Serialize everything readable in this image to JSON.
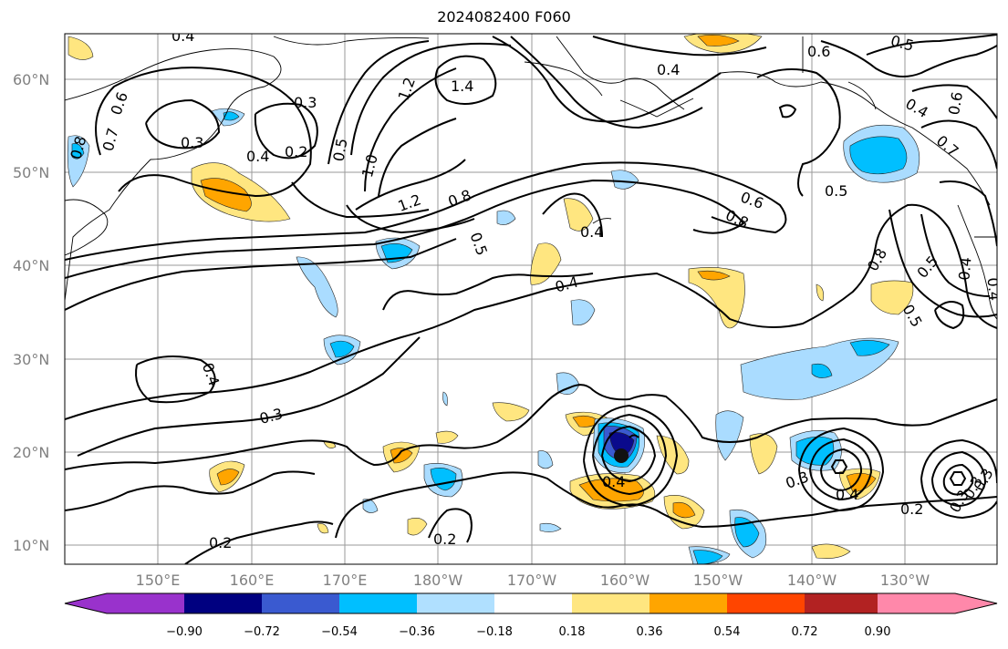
{
  "title": "2024082400 F060",
  "map": {
    "lat_labels": [
      "60°N",
      "50°N",
      "40°N",
      "30°N",
      "20°N",
      "10°N"
    ],
    "lon_labels": [
      "150°E",
      "160°E",
      "170°E",
      "180°W",
      "170°W",
      "160°W",
      "150°W",
      "140°W",
      "130°W"
    ],
    "contour_labels": [
      "0.4",
      "0.6",
      "0.7",
      "0.8",
      "0.3",
      "0.4",
      "0.2",
      "0.3",
      "1.2",
      "1.4",
      "0.5",
      "1.0",
      "1.2",
      "0.8",
      "0.4",
      "0.6",
      "0.8",
      "0.5",
      "0.4",
      "0.5",
      "0.6",
      "0.4",
      "0.5",
      "0.4",
      "0.6",
      "0.7",
      "0.8",
      "0.5",
      "0.4",
      "0.5",
      "0.4",
      "0.4",
      "0.3",
      "0.4",
      "0.3",
      "0.4",
      "0.2",
      "0.3",
      "0.2",
      "0.2",
      "0.3",
      "0.3"
    ],
    "fill_colors": {
      "neg_strong": "#0a0a8c",
      "neg_med": "#3a5ad0",
      "neg": "#00bfff",
      "neg_light": "#aadcff",
      "pos_light": "#ffe680",
      "pos": "#ffa500",
      "pos_med": "#ff4500",
      "pos_strong": "#b22222"
    }
  },
  "colorbar": {
    "tick_labels": [
      "−0.90",
      "−0.72",
      "−0.54",
      "−0.36",
      "−0.18",
      "0.18",
      "0.36",
      "0.54",
      "0.72",
      "0.90"
    ],
    "colors": [
      "#9932cc",
      "#000080",
      "#3a5ad0",
      "#00bfff",
      "#b0e0ff",
      "#ffffff",
      "#ffe680",
      "#ffa500",
      "#ff4500",
      "#b22222",
      "#ff88aa"
    ]
  }
}
